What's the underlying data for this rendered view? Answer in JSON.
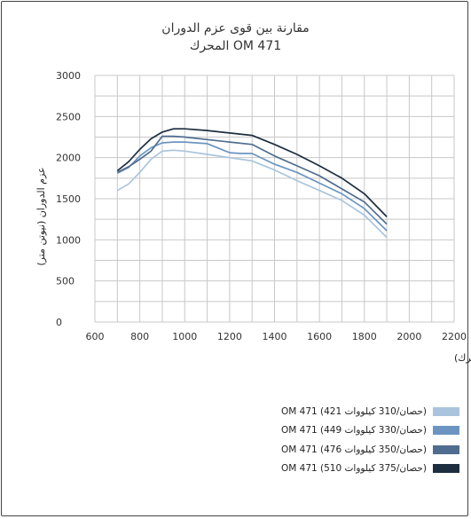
{
  "chart_data": {
    "type": "line",
    "title": "مقارنة بين قوى عزم الدوران",
    "subtitle": "المحرك OM 471",
    "xlabel": "سرعة المحرك (عدد لفات المحرك)",
    "ylabel": "عزم الدوران (نيوتن متر)",
    "xlim": [
      600,
      2200
    ],
    "ylim": [
      0,
      3000
    ],
    "x_ticks": [
      "600",
      "800",
      "1000",
      "1200",
      "1400",
      "1600",
      "1800",
      "2000",
      "2200"
    ],
    "y_ticks": [
      "0",
      "500",
      "1000",
      "1500",
      "2000",
      "2500",
      "3000"
    ],
    "grid": true,
    "legend_position": "bottom-right",
    "series": [
      {
        "name": "OM 471 (421 حصان/310 كيلووات)",
        "color": "#a9c5dd",
        "x": [
          700,
          750,
          800,
          850,
          900,
          950,
          1000,
          1100,
          1200,
          1300,
          1400,
          1500,
          1600,
          1700,
          1800,
          1900
        ],
        "y": [
          1600,
          1680,
          1820,
          1980,
          2080,
          2090,
          2080,
          2040,
          2000,
          1960,
          1850,
          1720,
          1600,
          1480,
          1300,
          1030
        ]
      },
      {
        "name": "OM 471 (449 حصان/330 كيلووات)",
        "color": "#6b95c0",
        "x": [
          700,
          750,
          800,
          850,
          900,
          950,
          1000,
          1100,
          1200,
          1250,
          1300,
          1400,
          1500,
          1600,
          1700,
          1800,
          1900
        ],
        "y": [
          1810,
          1880,
          2020,
          2120,
          2180,
          2190,
          2190,
          2170,
          2060,
          2050,
          2050,
          1920,
          1820,
          1690,
          1560,
          1380,
          1110
        ]
      },
      {
        "name": "OM 471 (476 حصان/350 كيلووات)",
        "color": "#4f6d8f",
        "x": [
          700,
          750,
          800,
          850,
          900,
          950,
          1000,
          1100,
          1200,
          1300,
          1400,
          1500,
          1600,
          1700,
          1800,
          1900
        ],
        "y": [
          1820,
          1890,
          1980,
          2080,
          2260,
          2260,
          2250,
          2220,
          2190,
          2160,
          2020,
          1900,
          1780,
          1620,
          1460,
          1190
        ]
      },
      {
        "name": "OM 471 (510 حصان/375 كيلووات)",
        "color": "#1c2e40",
        "x": [
          700,
          750,
          800,
          850,
          900,
          950,
          1000,
          1100,
          1200,
          1300,
          1400,
          1500,
          1600,
          1700,
          1800,
          1900
        ],
        "y": [
          1840,
          1950,
          2100,
          2230,
          2310,
          2350,
          2350,
          2330,
          2300,
          2270,
          2160,
          2040,
          1900,
          1750,
          1560,
          1280
        ]
      }
    ]
  }
}
